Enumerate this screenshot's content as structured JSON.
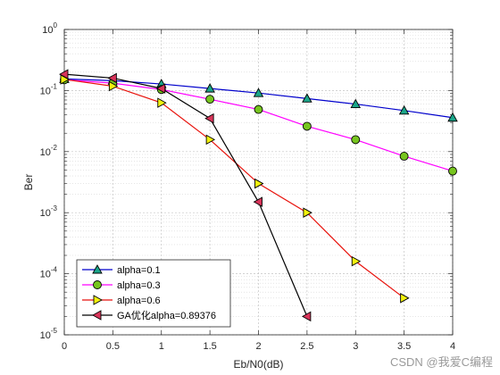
{
  "chart_data": {
    "type": "line",
    "title": "",
    "xlabel": "Eb/N0(dB)",
    "ylabel": "Ber",
    "xlim": [
      0,
      4
    ],
    "ylim": [
      1e-05,
      1
    ],
    "yscale": "log",
    "grid": true,
    "legend_position": "bottom-left",
    "x_ticks": [
      0,
      0.5,
      1,
      1.5,
      2,
      2.5,
      3,
      3.5,
      4
    ],
    "x_tick_labels": [
      "0",
      "0.5",
      "1",
      "1.5",
      "2",
      "2.5",
      "3",
      "3.5",
      "4"
    ],
    "y_ticks": [
      {
        "value": 1e-05,
        "base": "10",
        "exp": "-5"
      },
      {
        "value": 0.0001,
        "base": "10",
        "exp": "-4"
      },
      {
        "value": 0.001,
        "base": "10",
        "exp": "-3"
      },
      {
        "value": 0.01,
        "base": "10",
        "exp": "-2"
      },
      {
        "value": 0.1,
        "base": "10",
        "exp": "-1"
      },
      {
        "value": 1,
        "base": "10",
        "exp": "0"
      }
    ],
    "series": [
      {
        "name": "alpha=0.1",
        "color": "#0000cc",
        "marker": "triangle-up",
        "marker_fill": "#1aa589",
        "x": [
          0,
          0.5,
          1,
          1.5,
          2,
          2.5,
          3,
          3.5,
          4
        ],
        "y": [
          0.155,
          0.145,
          0.128,
          0.108,
          0.091,
          0.074,
          0.06,
          0.047,
          0.036
        ]
      },
      {
        "name": "alpha=0.3",
        "color": "#ff00ff",
        "marker": "circle",
        "marker_fill": "#77c51f",
        "x": [
          0,
          0.5,
          1,
          1.5,
          2,
          2.5,
          3,
          3.5,
          4
        ],
        "y": [
          0.15,
          0.132,
          0.104,
          0.072,
          0.049,
          0.026,
          0.0157,
          0.0084,
          0.0048
        ]
      },
      {
        "name": "alpha=0.6",
        "color": "#e8120c",
        "marker": "triangle-right",
        "marker_fill": "#f2f20d",
        "x": [
          0,
          0.5,
          1,
          1.5,
          2,
          2.5,
          3,
          3.5
        ],
        "y": [
          0.152,
          0.118,
          0.063,
          0.0157,
          0.003,
          0.001,
          0.00016,
          4e-05
        ]
      },
      {
        "name": "GA优化alpha=0.89376",
        "color": "#000000",
        "marker": "triangle-left",
        "marker_fill": "#d9345a",
        "x": [
          0,
          0.5,
          1,
          1.5,
          2,
          2.5
        ],
        "y": [
          0.185,
          0.16,
          0.108,
          0.035,
          0.0015,
          2e-05
        ]
      }
    ]
  },
  "watermark": "CSDN @我爱C编程"
}
